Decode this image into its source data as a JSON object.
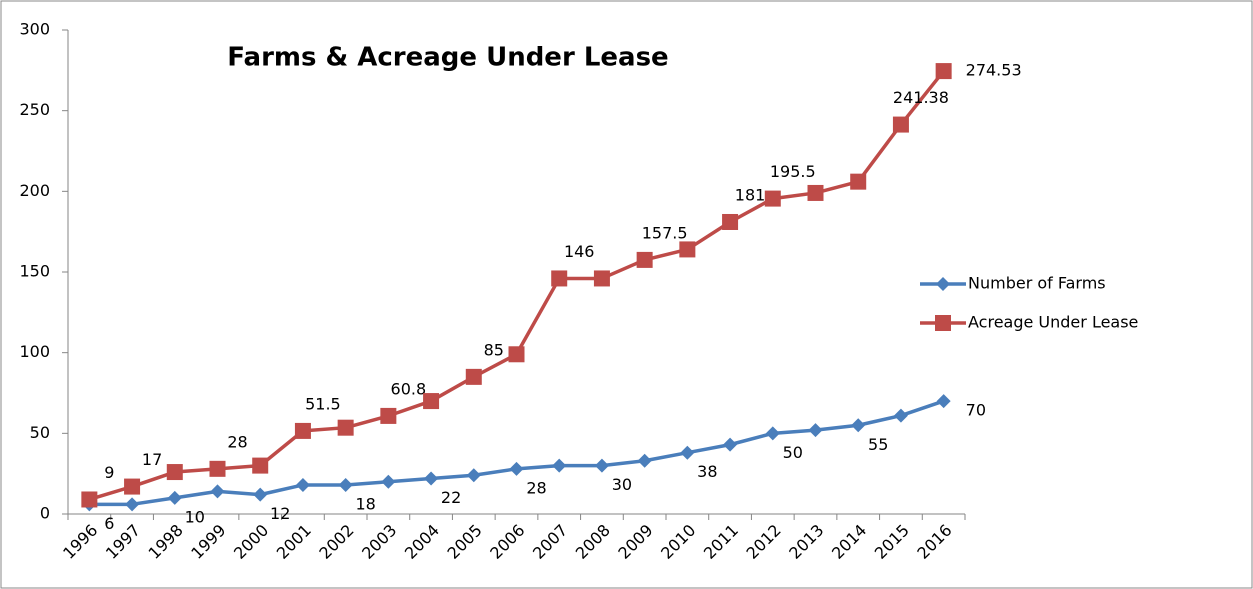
{
  "chart_data": {
    "type": "line",
    "title": "Farms & Acreage Under Lease",
    "categories": [
      "1996",
      "1997",
      "1998",
      "1999",
      "2000",
      "2001",
      "2002",
      "2003",
      "2004",
      "2005",
      "2006",
      "2007",
      "2008",
      "2009",
      "2010",
      "2011",
      "2012",
      "2013",
      "2014",
      "2015",
      "2016"
    ],
    "series": [
      {
        "name": "Number of Farms",
        "color": "#4a7ebb",
        "marker": "diamond",
        "values": [
          6,
          6,
          10,
          14,
          12,
          18,
          18,
          20,
          22,
          24,
          28,
          30,
          30,
          33,
          38,
          43,
          50,
          52,
          55,
          61,
          70
        ],
        "value_labels": [
          "6",
          null,
          "10",
          null,
          "12",
          null,
          "18",
          null,
          "22",
          null,
          "28",
          null,
          "30",
          null,
          "38",
          null,
          "50",
          null,
          "55",
          null,
          "70"
        ]
      },
      {
        "name": "Acreage Under Lease",
        "color": "#be4b48",
        "marker": "square",
        "values": [
          9,
          17,
          26,
          28,
          30,
          51.5,
          53.5,
          60.8,
          70,
          85,
          99,
          146,
          146,
          157.5,
          164,
          181,
          195.5,
          199,
          206,
          241.38,
          274.53
        ],
        "value_labels": [
          "9",
          "17",
          null,
          "28",
          null,
          "51.5",
          null,
          "60.8",
          null,
          "85",
          null,
          "146",
          null,
          "157.5",
          null,
          "181",
          "195.5",
          null,
          null,
          "241.38",
          "274.53"
        ]
      }
    ],
    "ylim": [
      0,
      300
    ],
    "yticks": [
      0,
      50,
      100,
      150,
      200,
      250,
      300
    ],
    "legend": "right"
  }
}
